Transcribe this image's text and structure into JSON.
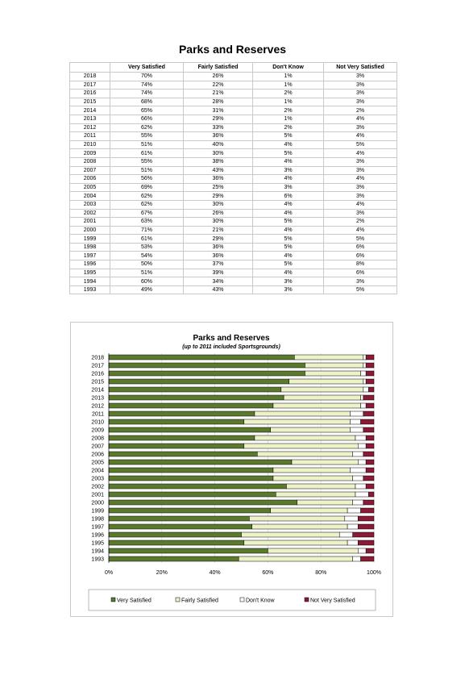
{
  "page": {
    "title": "Parks and Reserves"
  },
  "table": {
    "headers": [
      "",
      "Very Satisfied",
      "Fairly Satisfied",
      "Don't Know",
      "Not Very Satisfied"
    ],
    "rows": [
      [
        "2018",
        "70%",
        "26%",
        "1%",
        "3%"
      ],
      [
        "2017",
        "74%",
        "22%",
        "1%",
        "3%"
      ],
      [
        "2016",
        "74%",
        "21%",
        "2%",
        "3%"
      ],
      [
        "2015",
        "68%",
        "28%",
        "1%",
        "3%"
      ],
      [
        "2014",
        "65%",
        "31%",
        "2%",
        "2%"
      ],
      [
        "2013",
        "66%",
        "29%",
        "1%",
        "4%"
      ],
      [
        "2012",
        "62%",
        "33%",
        "2%",
        "3%"
      ],
      [
        "2011",
        "55%",
        "36%",
        "5%",
        "4%"
      ],
      [
        "2010",
        "51%",
        "40%",
        "4%",
        "5%"
      ],
      [
        "2009",
        "61%",
        "30%",
        "5%",
        "4%"
      ],
      [
        "2008",
        "55%",
        "38%",
        "4%",
        "3%"
      ],
      [
        "2007",
        "51%",
        "43%",
        "3%",
        "3%"
      ],
      [
        "2006",
        "56%",
        "36%",
        "4%",
        "4%"
      ],
      [
        "2005",
        "69%",
        "25%",
        "3%",
        "3%"
      ],
      [
        "2004",
        "62%",
        "29%",
        "6%",
        "3%"
      ],
      [
        "2003",
        "62%",
        "30%",
        "4%",
        "4%"
      ],
      [
        "2002",
        "67%",
        "26%",
        "4%",
        "3%"
      ],
      [
        "2001",
        "63%",
        "30%",
        "5%",
        "2%"
      ],
      [
        "2000",
        "71%",
        "21%",
        "4%",
        "4%"
      ],
      [
        "1999",
        "61%",
        "29%",
        "5%",
        "5%"
      ],
      [
        "1998",
        "53%",
        "36%",
        "5%",
        "6%"
      ],
      [
        "1997",
        "54%",
        "36%",
        "4%",
        "6%"
      ],
      [
        "1996",
        "50%",
        "37%",
        "5%",
        "8%"
      ],
      [
        "1995",
        "51%",
        "39%",
        "4%",
        "6%"
      ],
      [
        "1994",
        "60%",
        "34%",
        "3%",
        "3%"
      ],
      [
        "1993",
        "49%",
        "43%",
        "3%",
        "5%"
      ]
    ]
  },
  "chart_data": {
    "type": "bar",
    "orientation": "horizontal",
    "stacked": "100%",
    "title": "Parks and Reserves",
    "subtitle": "(up to 2011 included Sportsgrounds)",
    "categories": [
      "2018",
      "2017",
      "2016",
      "2015",
      "2014",
      "2013",
      "2012",
      "2011",
      "2010",
      "2009",
      "2008",
      "2007",
      "2006",
      "2005",
      "2004",
      "2003",
      "2002",
      "2001",
      "2000",
      "1999",
      "1998",
      "1997",
      "1996",
      "1995",
      "1994",
      "1993"
    ],
    "series": [
      {
        "name": "Very Satisfied",
        "color": "#5b7a2e",
        "values": [
          70,
          74,
          74,
          68,
          65,
          66,
          62,
          55,
          51,
          61,
          55,
          51,
          56,
          69,
          62,
          62,
          67,
          63,
          71,
          61,
          53,
          54,
          50,
          51,
          60,
          49
        ]
      },
      {
        "name": "Fairly Satisfied",
        "color": "#eef2c8",
        "values": [
          26,
          22,
          21,
          28,
          31,
          29,
          33,
          36,
          40,
          30,
          38,
          43,
          36,
          25,
          29,
          30,
          26,
          30,
          21,
          29,
          36,
          36,
          37,
          39,
          34,
          43
        ]
      },
      {
        "name": "Don't Know",
        "color": "#ffffff",
        "values": [
          1,
          1,
          2,
          1,
          2,
          1,
          2,
          5,
          4,
          5,
          4,
          3,
          4,
          3,
          6,
          4,
          4,
          5,
          4,
          5,
          5,
          4,
          5,
          4,
          3,
          3
        ]
      },
      {
        "name": "Not Very Satisfied",
        "color": "#8b1a36",
        "values": [
          3,
          3,
          3,
          3,
          2,
          4,
          3,
          4,
          5,
          4,
          3,
          3,
          4,
          3,
          3,
          4,
          3,
          2,
          4,
          5,
          6,
          6,
          8,
          6,
          3,
          5
        ]
      }
    ],
    "xticks": [
      "0%",
      "20%",
      "40%",
      "60%",
      "80%",
      "100%"
    ],
    "xlim": [
      0,
      100
    ],
    "legend_position": "bottom"
  }
}
